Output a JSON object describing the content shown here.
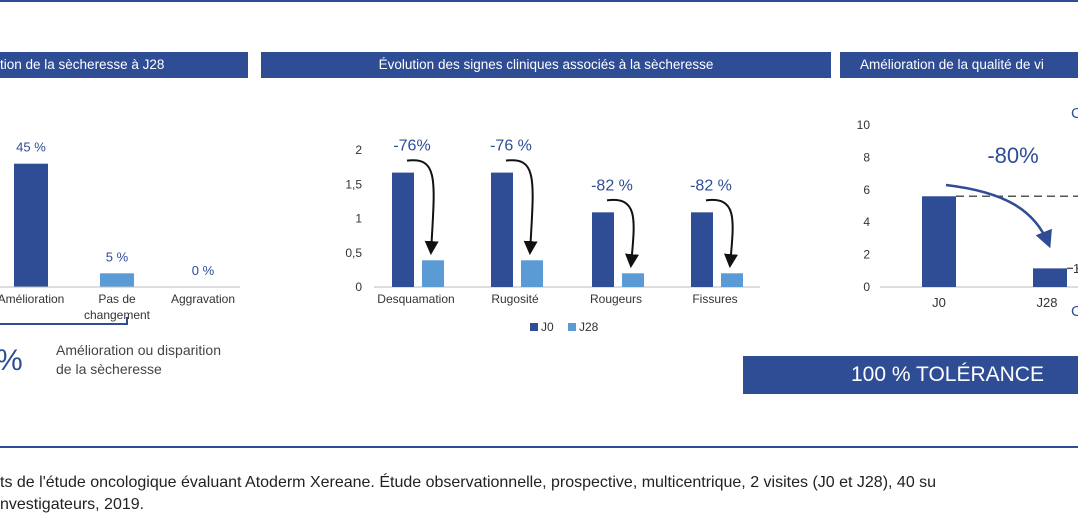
{
  "headers": {
    "left": "tion de la sècheresse à J28",
    "middle": "Évolution des signes cliniques associés à la sècheresse",
    "right": "Amélioration de la qualité de vi"
  },
  "left_panel": {
    "big_value": "%",
    "caption_line1": "Amélioration ou disparition",
    "caption_line2": "de la sècheresse"
  },
  "right_panel": {
    "change_label": "-80%",
    "partial_letter_top": "C",
    "partial_letter_bottom": "C",
    "partial_tick": "1"
  },
  "tolerance_banner": "100 % TOLÉRANCE",
  "footnote": {
    "line1": "ts de l'étude oncologique évaluant Atoderm Xereane. Étude observationnelle, prospective, multicentrique, 2 visites (J0 et J28), 40 su",
    "line2": "nvestigateurs, 2019."
  },
  "chart_data": [
    {
      "type": "bar",
      "categories": [
        "Amélioration",
        "Pas de changement",
        "Aggravation"
      ],
      "category_lines": [
        [
          "Amélioration"
        ],
        [
          "Pas de",
          "changement"
        ],
        [
          "Aggravation"
        ]
      ],
      "values": [
        45,
        5,
        0
      ],
      "value_labels": [
        "45 %",
        "5 %",
        "0 %"
      ],
      "unit": "%",
      "ylim": [
        0,
        50
      ],
      "colors": [
        "#2e4d95",
        "#5b9bd5",
        "#5b9bd5"
      ],
      "grid": false
    },
    {
      "type": "bar",
      "categories": [
        "Desquamation",
        "Rugosité",
        "Rougeurs",
        "Fissures"
      ],
      "series": [
        {
          "name": "J0",
          "values": [
            1.67,
            1.67,
            1.09,
            1.09
          ],
          "color": "#2e4d95"
        },
        {
          "name": "J28",
          "values": [
            0.39,
            0.39,
            0.2,
            0.2
          ],
          "color": "#5b9bd5"
        }
      ],
      "change_labels": [
        "-76%",
        "-76 %",
        "-82 %",
        "-82 %"
      ],
      "y_ticks": [
        "0",
        "0,5",
        "1",
        "1,5",
        "2"
      ],
      "y_tick_values": [
        0,
        0.5,
        1,
        1.5,
        2
      ],
      "ylim": [
        0,
        2
      ],
      "legend": "bottom",
      "grid": false
    },
    {
      "type": "bar",
      "categories": [
        "J0",
        "J28"
      ],
      "values": [
        5.6,
        1.15
      ],
      "color": "#2e4d95",
      "y_ticks": [
        "0",
        "2",
        "4",
        "6",
        "8",
        "10"
      ],
      "y_tick_values": [
        0,
        2,
        4,
        6,
        8,
        10
      ],
      "ylim": [
        0,
        10
      ],
      "reference_line": 5.6,
      "grid": false
    }
  ]
}
